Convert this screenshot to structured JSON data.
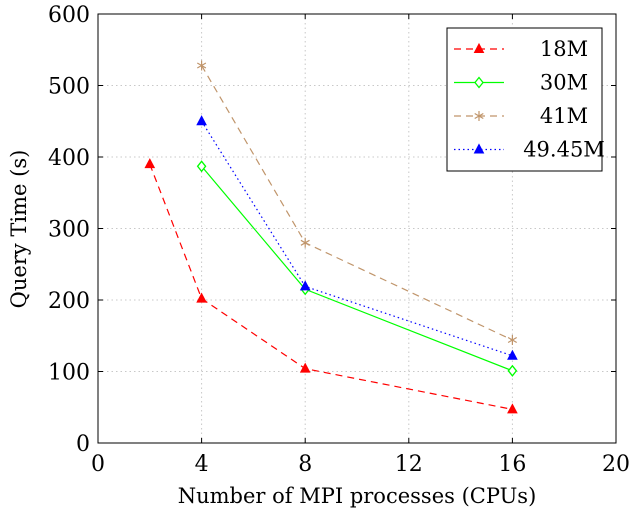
{
  "chart_data": {
    "type": "line",
    "xlabel": "Number of MPI processes (CPUs)",
    "ylabel": "Query Time (s)",
    "xlim": [
      0,
      20
    ],
    "ylim": [
      0,
      600
    ],
    "xticks": [
      0,
      4,
      8,
      12,
      16,
      20
    ],
    "yticks": [
      0,
      100,
      200,
      300,
      400,
      500,
      600
    ],
    "grid": true,
    "legend_position": "top-right",
    "series": [
      {
        "name": "18M",
        "color": "#ff0000",
        "dash": "dashed",
        "marker": "triangle",
        "x": [
          2,
          4,
          8,
          16
        ],
        "values": [
          390,
          202,
          104,
          47
        ]
      },
      {
        "name": "30M",
        "color": "#00ff00",
        "dash": "solid",
        "marker": "diamond",
        "x": [
          4,
          8,
          16
        ],
        "values": [
          387,
          215,
          101
        ]
      },
      {
        "name": "41M",
        "color": "#c0956b",
        "dash": "dashed",
        "marker": "asterisk",
        "x": [
          4,
          8,
          16
        ],
        "values": [
          528,
          280,
          144
        ]
      },
      {
        "name": "49.45M",
        "color": "#0000ff",
        "dash": "dotted",
        "marker": "triangle",
        "x": [
          4,
          8,
          16
        ],
        "values": [
          450,
          219,
          122
        ]
      }
    ]
  }
}
